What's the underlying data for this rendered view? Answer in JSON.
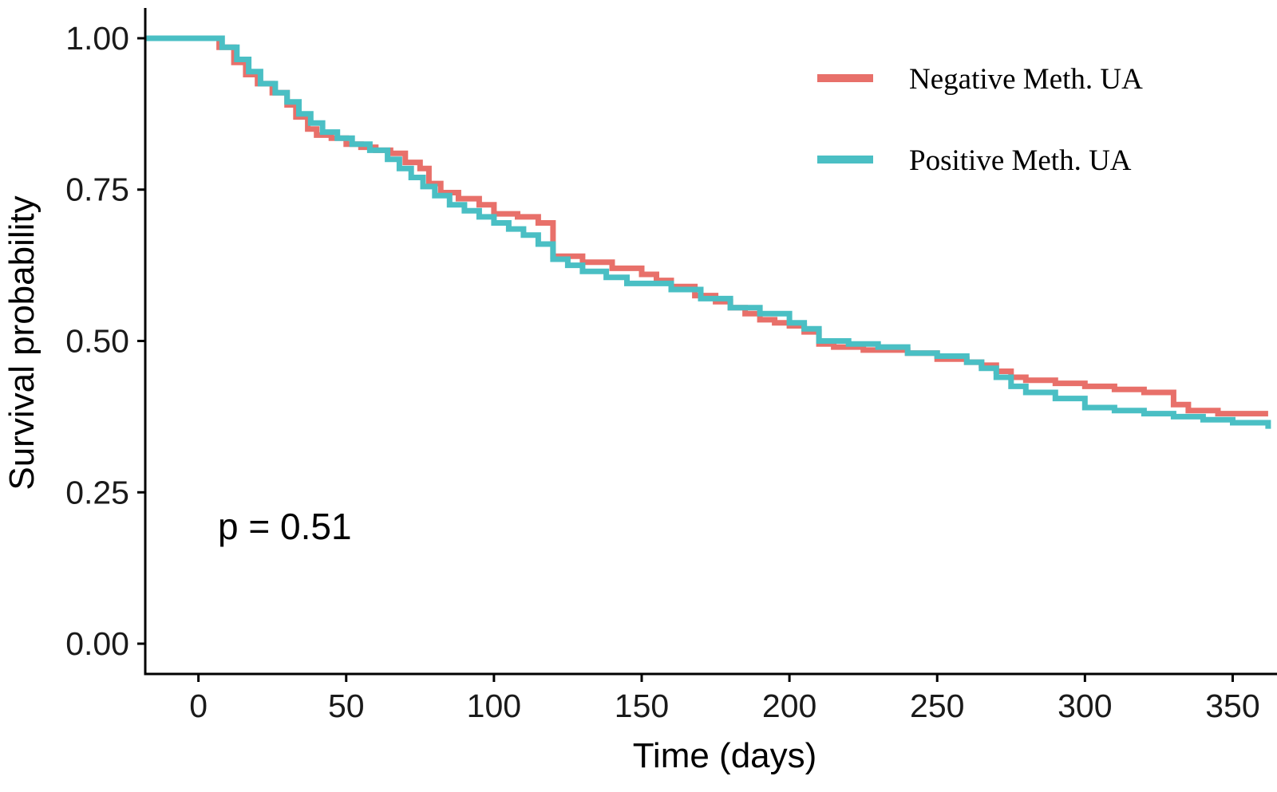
{
  "chart_data": {
    "type": "line",
    "subtype": "kaplan-meier step",
    "title": "",
    "xlabel": "Time (days)",
    "ylabel": "Survival probability",
    "xlim": [
      -18,
      365
    ],
    "ylim": [
      -0.05,
      1.05
    ],
    "xticks": [
      0,
      50,
      100,
      150,
      200,
      250,
      300,
      350
    ],
    "xtick_labels": [
      "0",
      "50",
      "100",
      "150",
      "200",
      "250",
      "300",
      "350"
    ],
    "yticks": [
      0,
      0.25,
      0.5,
      0.75,
      1.0
    ],
    "ytick_labels": [
      "0.00",
      "0.25",
      "0.50",
      "0.75",
      "1.00"
    ],
    "annotation": "p = 0.51",
    "legend_position": "top-right",
    "grid": false,
    "series": [
      {
        "name": "Negative Meth. UA",
        "color": "#E8706A",
        "x": [
          -18,
          2,
          7,
          12,
          16,
          20,
          25,
          30,
          33,
          37,
          40,
          45,
          50,
          55,
          60,
          65,
          70,
          75,
          78,
          82,
          88,
          95,
          100,
          108,
          115,
          120,
          125,
          130,
          140,
          150,
          155,
          160,
          168,
          175,
          180,
          185,
          190,
          195,
          200,
          205,
          210,
          215,
          225,
          240,
          250,
          260,
          265,
          270,
          275,
          280,
          290,
          300,
          310,
          320,
          330,
          335,
          345,
          362
        ],
        "y": [
          1.0,
          1.0,
          0.985,
          0.96,
          0.94,
          0.925,
          0.91,
          0.89,
          0.87,
          0.85,
          0.84,
          0.835,
          0.825,
          0.82,
          0.815,
          0.81,
          0.795,
          0.785,
          0.76,
          0.745,
          0.735,
          0.725,
          0.71,
          0.705,
          0.695,
          0.64,
          0.64,
          0.63,
          0.62,
          0.61,
          0.6,
          0.59,
          0.575,
          0.565,
          0.555,
          0.545,
          0.535,
          0.53,
          0.525,
          0.515,
          0.495,
          0.49,
          0.485,
          0.48,
          0.47,
          0.465,
          0.46,
          0.45,
          0.44,
          0.435,
          0.43,
          0.425,
          0.42,
          0.415,
          0.395,
          0.385,
          0.38,
          0.38
        ]
      },
      {
        "name": "Positive Meth. UA",
        "color": "#4ABFC4",
        "x": [
          -18,
          4,
          8,
          13,
          17,
          21,
          26,
          30,
          34,
          38,
          42,
          47,
          52,
          58,
          64,
          68,
          72,
          76,
          80,
          85,
          90,
          95,
          100,
          105,
          110,
          115,
          120,
          125,
          130,
          138,
          145,
          160,
          170,
          180,
          190,
          200,
          205,
          210,
          220,
          230,
          240,
          250,
          260,
          265,
          270,
          275,
          280,
          290,
          300,
          310,
          320,
          330,
          340,
          350,
          362
        ],
        "y": [
          1.0,
          1.0,
          0.985,
          0.965,
          0.945,
          0.925,
          0.91,
          0.895,
          0.875,
          0.86,
          0.845,
          0.835,
          0.825,
          0.815,
          0.8,
          0.785,
          0.77,
          0.755,
          0.74,
          0.725,
          0.715,
          0.705,
          0.695,
          0.685,
          0.675,
          0.66,
          0.635,
          0.625,
          0.615,
          0.605,
          0.595,
          0.585,
          0.57,
          0.555,
          0.545,
          0.53,
          0.52,
          0.5,
          0.495,
          0.49,
          0.48,
          0.475,
          0.465,
          0.455,
          0.44,
          0.425,
          0.415,
          0.405,
          0.39,
          0.385,
          0.38,
          0.375,
          0.37,
          0.365,
          0.355
        ]
      }
    ]
  }
}
